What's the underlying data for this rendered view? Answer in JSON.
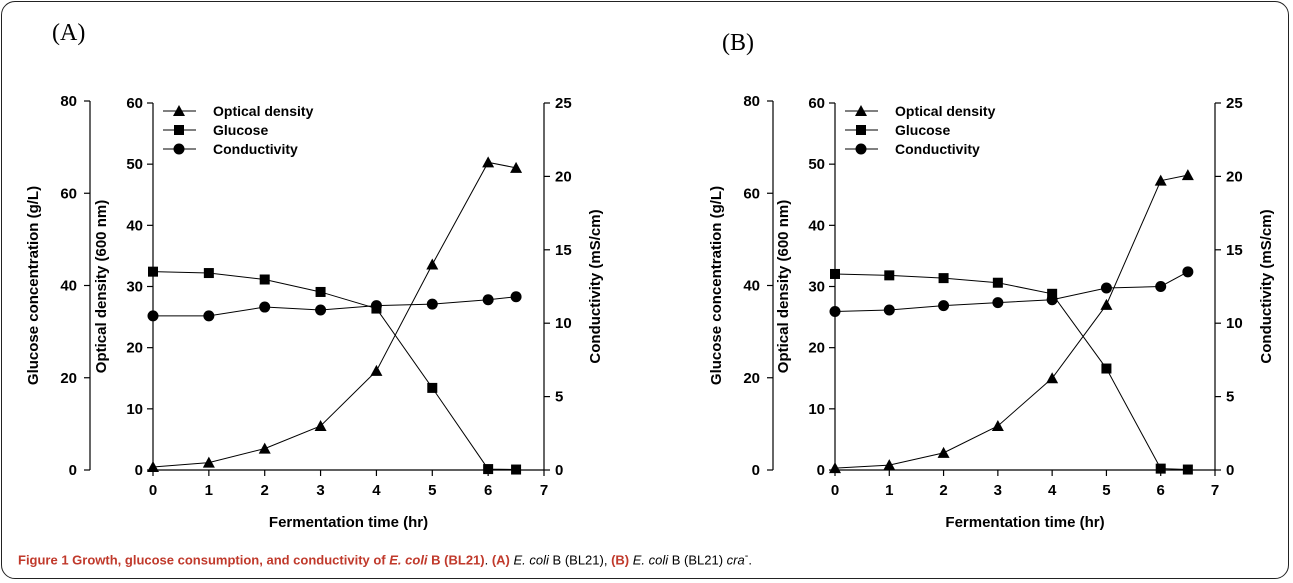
{
  "chart_data": [
    {
      "type": "line",
      "panel_label": "(A)",
      "xlabel": "Fermentation time (hr)",
      "xticks": [
        "0",
        "1",
        "2",
        "3",
        "4",
        "5",
        "6",
        "7"
      ],
      "xlim": [
        0,
        7
      ],
      "axes": {
        "glucose": {
          "label": "Glucose concentration (g/L)",
          "lim": [
            0,
            80
          ],
          "ticks": [
            "0",
            "20",
            "40",
            "60",
            "80"
          ]
        },
        "od": {
          "label": "Optical density (600 nm)",
          "lim": [
            0,
            60
          ],
          "ticks": [
            "0",
            "10",
            "20",
            "30",
            "40",
            "50",
            "60"
          ]
        },
        "conductivity": {
          "label": "Conductivity (mS/cm)",
          "lim": [
            0,
            25
          ],
          "ticks": [
            "0",
            "5",
            "10",
            "15",
            "20",
            "25"
          ]
        }
      },
      "legend": [
        "Optical density",
        "Glucose",
        "Conductivity"
      ],
      "series": [
        {
          "name": "Optical density",
          "axis": "od",
          "marker": "triangle",
          "x": [
            0,
            1,
            2,
            3,
            4,
            5,
            6,
            6.5
          ],
          "y": [
            0.5,
            1.2,
            3.5,
            7.2,
            16.2,
            33.6,
            50.3,
            49.4
          ]
        },
        {
          "name": "Glucose",
          "axis": "glucose",
          "marker": "square",
          "x": [
            0,
            1,
            2,
            3,
            4,
            5,
            6,
            6.5
          ],
          "y": [
            43.0,
            42.7,
            41.3,
            38.6,
            35.0,
            17.8,
            0.2,
            0.1
          ]
        },
        {
          "name": "Conductivity",
          "axis": "conductivity",
          "marker": "circle",
          "x": [
            0,
            1,
            2,
            3,
            4,
            5,
            6,
            6.5
          ],
          "y": [
            10.5,
            10.5,
            11.1,
            10.9,
            11.2,
            11.3,
            11.6,
            11.8
          ]
        }
      ]
    },
    {
      "type": "line",
      "panel_label": "(B)",
      "xlabel": "Fermentation time (hr)",
      "xticks": [
        "0",
        "1",
        "2",
        "3",
        "4",
        "5",
        "6",
        "7"
      ],
      "xlim": [
        0,
        7
      ],
      "axes": {
        "glucose": {
          "label": "Glucose concentration (g/L)",
          "lim": [
            0,
            80
          ],
          "ticks": [
            "0",
            "20",
            "40",
            "60",
            "80"
          ]
        },
        "od": {
          "label": "Optical density (600 nm)",
          "lim": [
            0,
            60
          ],
          "ticks": [
            "0",
            "10",
            "20",
            "30",
            "40",
            "50",
            "60"
          ]
        },
        "conductivity": {
          "label": "Conductivity (mS/cm)",
          "lim": [
            0,
            25
          ],
          "ticks": [
            "0",
            "5",
            "10",
            "15",
            "20",
            "25"
          ]
        }
      },
      "legend": [
        "Optical density",
        "Glucose",
        "Conductivity"
      ],
      "series": [
        {
          "name": "Optical density",
          "axis": "od",
          "marker": "triangle",
          "x": [
            0,
            1,
            2,
            3,
            4,
            5,
            6,
            6.5
          ],
          "y": [
            0.3,
            0.8,
            2.8,
            7.2,
            15.0,
            27.0,
            47.3,
            48.2
          ]
        },
        {
          "name": "Glucose",
          "axis": "glucose",
          "marker": "square",
          "x": [
            0,
            1,
            2,
            3,
            4,
            5,
            6,
            6.5
          ],
          "y": [
            42.5,
            42.2,
            41.6,
            40.6,
            38.2,
            22.0,
            0.3,
            0.1
          ]
        },
        {
          "name": "Conductivity",
          "axis": "conductivity",
          "marker": "circle",
          "x": [
            0,
            1,
            2,
            3,
            4,
            5,
            6,
            6.5
          ],
          "y": [
            10.8,
            10.9,
            11.2,
            11.4,
            11.6,
            12.4,
            12.5,
            13.5
          ]
        }
      ]
    }
  ],
  "caption": {
    "title": "Figure 1 Growth, glucose consumption, and conductivity of ",
    "title_italic": "E. coli",
    "title_end": " B (BL21)",
    "period": ". ",
    "label_a": "(A) ",
    "text_a_italic": "E. coli",
    "text_a": " B (BL21), ",
    "label_b": "(B) ",
    "text_b_italic": "E. coli",
    "text_b": " B (BL21) ",
    "text_b_gene": "cra",
    "text_b_sup": "-",
    "end": "."
  }
}
